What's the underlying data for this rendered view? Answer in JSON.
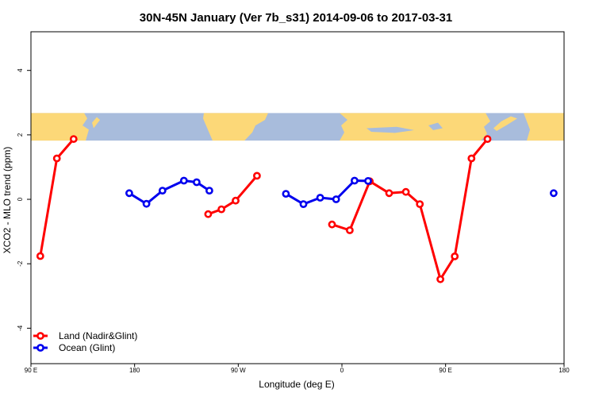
{
  "chart_data": {
    "type": "line",
    "title": "30N-45N January (Ver 7b_s31)   2014-09-06 to 2017-03-31",
    "xlabel": "Longitude (deg E)",
    "ylabel": "XCO2 - MLO trend (ppm)",
    "xlim": [
      90,
      450
    ],
    "ylim": [
      -5.1,
      5.2
    ],
    "x_ticks": [
      {
        "value": 90,
        "label": "90 E"
      },
      {
        "value": 160,
        "label": "180"
      },
      {
        "value": 230,
        "label": "90 W"
      },
      {
        "value": 300,
        "label": "0"
      },
      {
        "value": 370,
        "label": "90 E"
      },
      {
        "value": 450,
        "label": "180"
      }
    ],
    "y_ticks": [
      {
        "value": -4,
        "label": "-4"
      },
      {
        "value": -2,
        "label": "-2"
      },
      {
        "value": 0,
        "label": "0"
      },
      {
        "value": 2,
        "label": "2"
      },
      {
        "value": 4,
        "label": "4"
      }
    ],
    "map_band": {
      "ymin": 1.82,
      "ymax": 2.68,
      "ocean_color": "#a8bcdc",
      "land_color": "#fcd878"
    },
    "legend_position": "bottom-left",
    "series": [
      {
        "name": "Land (Nadir&Glint)",
        "color": "#ff0000",
        "segments": [
          {
            "x": [
              96.3,
              107.5,
              118.8
            ],
            "y": [
              -1.76,
              1.27,
              1.87
            ]
          },
          {
            "x": [
              209.7,
              218.6,
              228.2,
              242.6
            ],
            "y": [
              -0.46,
              -0.31,
              -0.04,
              0.73
            ]
          },
          {
            "x": [
              293.3,
              305.3,
              318.8,
              331.9,
              343.2,
              352.6,
              366.5,
              376.2,
              387.5,
              398.3
            ],
            "y": [
              -0.78,
              -0.96,
              0.56,
              0.19,
              0.23,
              -0.15,
              -2.48,
              -1.77,
              1.27,
              1.87
            ]
          }
        ]
      },
      {
        "name": "Ocean (Glint)",
        "color": "#0000ee",
        "segments": [
          {
            "x": [
              156.4,
              168.0,
              178.8,
              193.3,
              201.9,
              210.5
            ],
            "y": [
              0.19,
              -0.14,
              0.27,
              0.58,
              0.53,
              0.27
            ]
          },
          {
            "x": [
              262.2,
              274.0,
              285.3,
              296.1,
              308.5,
              317.7
            ],
            "y": [
              0.17,
              -0.15,
              0.05,
              0.0,
              0.58,
              0.57
            ]
          },
          {
            "x": [
              443.0
            ],
            "y": [
              0.19
            ]
          }
        ]
      }
    ]
  }
}
